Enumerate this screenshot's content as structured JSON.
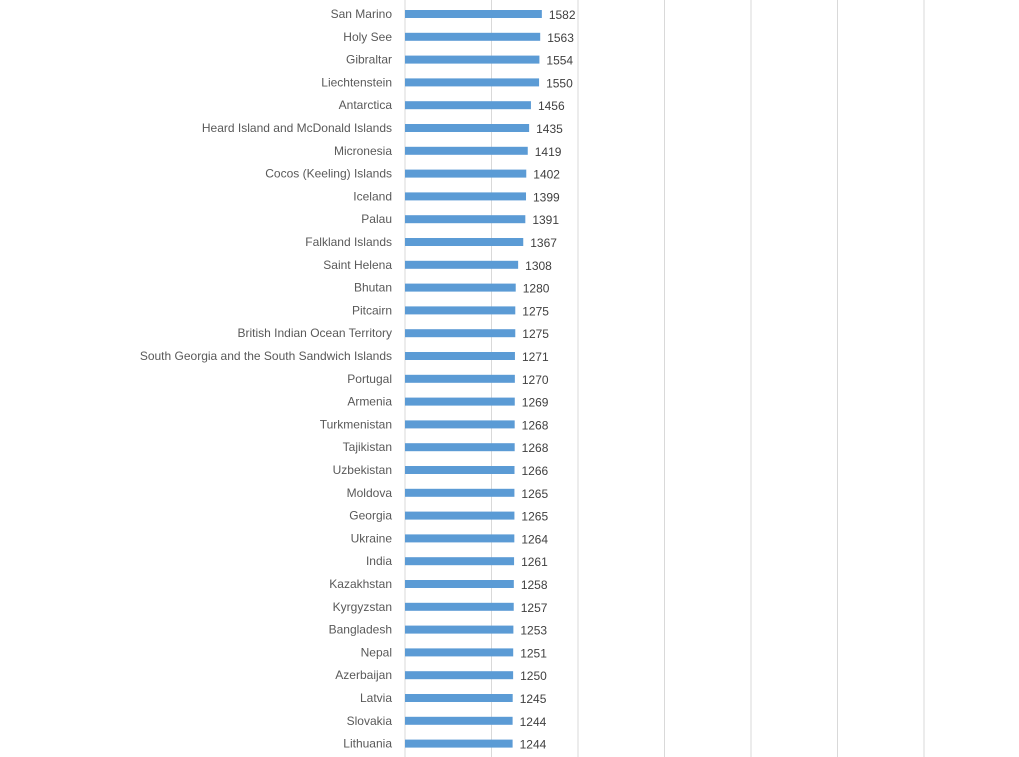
{
  "chart_data": {
    "type": "bar",
    "orientation": "horizontal",
    "bar_color": "#5B9BD5",
    "gridlines": "vertical",
    "categories": [
      "San Marino",
      "Holy See",
      "Gibraltar",
      "Liechtenstein",
      "Antarctica",
      "Heard Island and McDonald Islands",
      "Micronesia",
      "Cocos (Keeling) Islands",
      "Iceland",
      "Palau",
      "Falkland Islands",
      "Saint Helena",
      "Bhutan",
      "Pitcairn",
      "British Indian Ocean Territory",
      "South Georgia and the South Sandwich Islands",
      "Portugal",
      "Armenia",
      "Turkmenistan",
      "Tajikistan",
      "Uzbekistan",
      "Moldova",
      "Georgia",
      "Ukraine",
      "India",
      "Kazakhstan",
      "Kyrgyzstan",
      "Bangladesh",
      "Nepal",
      "Azerbaijan",
      "Latvia",
      "Slovakia",
      "Lithuania"
    ],
    "values": [
      1582,
      1563,
      1554,
      1550,
      1456,
      1435,
      1419,
      1402,
      1399,
      1391,
      1367,
      1308,
      1280,
      1275,
      1275,
      1271,
      1270,
      1269,
      1268,
      1268,
      1266,
      1265,
      1265,
      1264,
      1261,
      1258,
      1257,
      1253,
      1251,
      1250,
      1245,
      1244,
      1244
    ]
  }
}
